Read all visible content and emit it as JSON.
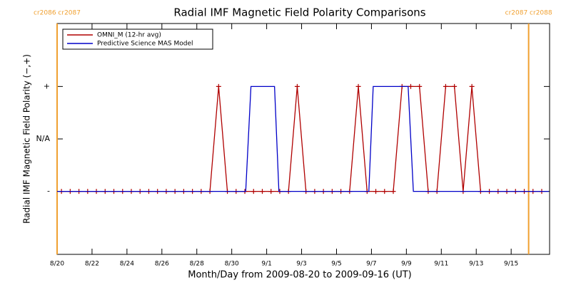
{
  "chart_data": {
    "type": "line",
    "title": "Radial IMF Magnetic Field Polarity Comparisons",
    "x_label": "Month/Day from 2009-08-20 to 2009-09-16 (UT)",
    "y_label": "Radial IMF Magnetic Field Polarity (−,+)",
    "xlim": [
      0,
      28.2
    ],
    "ylim": [
      -2.2,
      2.2
    ],
    "xticks": [
      {
        "value": 0,
        "label": "8/20"
      },
      {
        "value": 2,
        "label": "8/22"
      },
      {
        "value": 4,
        "label": "8/24"
      },
      {
        "value": 6,
        "label": "8/26"
      },
      {
        "value": 8,
        "label": "8/28"
      },
      {
        "value": 10,
        "label": "8/30"
      },
      {
        "value": 12,
        "label": "9/1"
      },
      {
        "value": 14,
        "label": "9/3"
      },
      {
        "value": 16,
        "label": "9/5"
      },
      {
        "value": 18,
        "label": "9/7"
      },
      {
        "value": 20,
        "label": "9/9"
      },
      {
        "value": 22,
        "label": "9/11"
      },
      {
        "value": 24,
        "label": "9/13"
      },
      {
        "value": 26,
        "label": "9/15"
      }
    ],
    "yticks": [
      {
        "value": -1,
        "label": "-"
      },
      {
        "value": 0,
        "label": "N/A"
      },
      {
        "value": 1,
        "label": "+"
      }
    ],
    "legend": "upper left",
    "annotations": [
      {
        "x": 0,
        "label": "cr2086 cr2087"
      },
      {
        "x": 27,
        "label": "cr2087 cr2088"
      }
    ],
    "annotation_color": "#f0a030",
    "series": [
      {
        "name": "OMNI_M (12-hr avg)",
        "color": "#b00000",
        "marker": "+",
        "x": [
          0.25,
          0.75,
          1.25,
          1.75,
          2.25,
          2.75,
          3.25,
          3.75,
          4.25,
          4.75,
          5.25,
          5.75,
          6.25,
          6.75,
          7.25,
          7.75,
          8.25,
          8.75,
          9.25,
          9.75,
          10.25,
          10.75,
          11.25,
          11.75,
          12.25,
          12.75,
          13.25,
          13.75,
          14.25,
          14.75,
          15.25,
          15.75,
          16.25,
          16.75,
          17.25,
          17.75,
          18.25,
          18.75,
          19.25,
          19.75,
          20.25,
          20.75,
          21.25,
          21.75,
          22.25,
          22.75,
          23.25,
          23.75,
          24.25,
          24.75,
          25.25,
          25.75,
          26.25,
          26.75,
          27.25,
          27.75
        ],
        "values": [
          -1,
          -1,
          -1,
          -1,
          -1,
          -1,
          -1,
          -1,
          -1,
          -1,
          -1,
          -1,
          -1,
          -1,
          -1,
          -1,
          -1,
          -1,
          1,
          -1,
          -1,
          -1,
          -1,
          -1,
          -1,
          -1,
          -1,
          1,
          -1,
          -1,
          -1,
          -1,
          -1,
          -1,
          1,
          -1,
          -1,
          -1,
          -1,
          1,
          1,
          1,
          -1,
          -1,
          1,
          1,
          -1,
          1,
          -1,
          -1,
          -1,
          -1,
          -1,
          -1,
          -1,
          -1
        ]
      },
      {
        "name": "Predictive Science MAS Model",
        "color": "#0000c8",
        "marker": "none",
        "x": [
          0,
          10.8,
          11.1,
          12.45,
          12.7,
          17.85,
          18.1,
          20.1,
          20.4,
          28.15
        ],
        "values": [
          -1,
          -1,
          1,
          1,
          -1,
          -1,
          1,
          1,
          -1,
          -1
        ]
      }
    ]
  }
}
